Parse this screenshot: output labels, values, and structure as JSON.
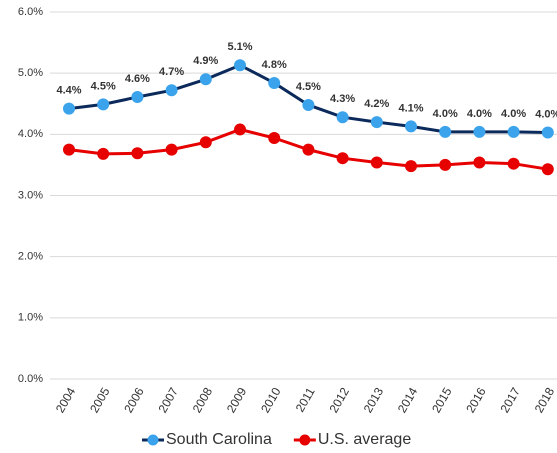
{
  "chart_data": {
    "type": "line",
    "categories": [
      "2004",
      "2005",
      "2006",
      "2007",
      "2008",
      "2009",
      "2010",
      "2011",
      "2012",
      "2013",
      "2014",
      "2015",
      "2016",
      "2017",
      "2018"
    ],
    "series": [
      {
        "name": "South Carolina",
        "color": "#0b2a5b",
        "marker_color": "#3ba3ec",
        "values": [
          4.42,
          4.49,
          4.61,
          4.72,
          4.9,
          5.13,
          4.84,
          4.48,
          4.28,
          4.2,
          4.13,
          4.04,
          4.04,
          4.04,
          4.03
        ],
        "value_labels": [
          "4.4%",
          "4.5%",
          "4.6%",
          "4.7%",
          "4.9%",
          "5.1%",
          "4.8%",
          "4.5%",
          "4.3%",
          "4.2%",
          "4.1%",
          "4.0%",
          "4.0%",
          "4.0%",
          "4.0%"
        ]
      },
      {
        "name": "U.S. average",
        "color": "#e60000",
        "marker_color": "#e60000",
        "values": [
          3.75,
          3.68,
          3.69,
          3.75,
          3.87,
          4.08,
          3.94,
          3.75,
          3.61,
          3.54,
          3.48,
          3.5,
          3.54,
          3.52,
          3.43
        ]
      }
    ],
    "ylim": [
      0,
      6
    ],
    "yticks": [
      {
        "value": 0,
        "label": "0.0%"
      },
      {
        "value": 1,
        "label": "1.0%"
      },
      {
        "value": 2,
        "label": "2.0%"
      },
      {
        "value": 3,
        "label": "3.0%"
      },
      {
        "value": 4,
        "label": "4.0%"
      },
      {
        "value": 5,
        "label": "5.0%"
      },
      {
        "value": 6,
        "label": "6.0%"
      }
    ],
    "grid": true,
    "legend": "bottom"
  }
}
